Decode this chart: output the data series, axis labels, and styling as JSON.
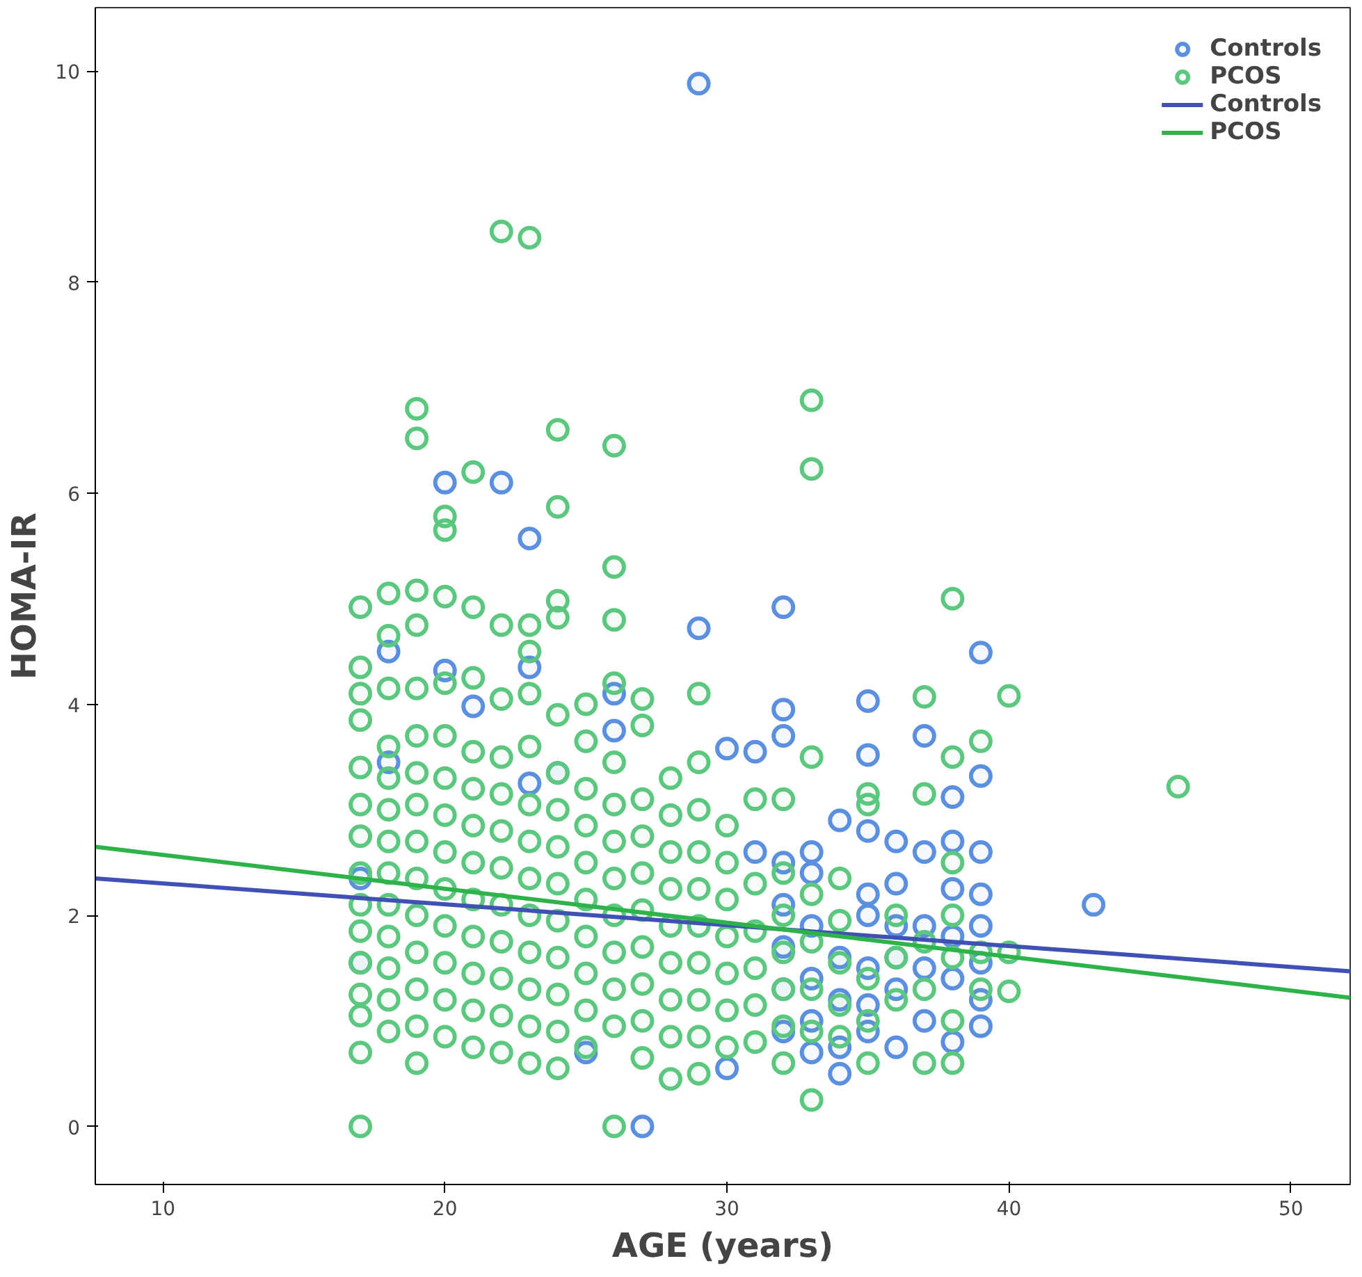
{
  "chart_data": {
    "type": "scatter",
    "xlabel": "AGE (years)",
    "ylabel": "HOMA-IR",
    "xlim": [
      7.6,
      52.1
    ],
    "ylim": [
      -0.55,
      10.6
    ],
    "xticks": [
      10,
      20,
      30,
      40,
      50
    ],
    "yticks": [
      0,
      2,
      4,
      6,
      8,
      10
    ],
    "grid": false,
    "legend": "top right",
    "series": [
      {
        "name": "Controls",
        "marker": "circle",
        "color": "#5b8fdf",
        "x": [
          17,
          17,
          18,
          18,
          20,
          20,
          21,
          22,
          23,
          23,
          23,
          24,
          25,
          26,
          26,
          27,
          29,
          29,
          30,
          30,
          31,
          31,
          32,
          32,
          32,
          32,
          32,
          32,
          32,
          32,
          33,
          33,
          33,
          33,
          33,
          33,
          34,
          34,
          34,
          34,
          34,
          35,
          35,
          35,
          35,
          35,
          35,
          35,
          35,
          36,
          36,
          36,
          36,
          36,
          36,
          37,
          37,
          37,
          37,
          37,
          38,
          38,
          38,
          38,
          38,
          38,
          39,
          39,
          39,
          39,
          39,
          39,
          39,
          39,
          43
        ],
        "values": [
          1.55,
          2.35,
          3.45,
          4.5,
          4.32,
          6.1,
          3.98,
          6.1,
          3.25,
          4.35,
          5.57,
          3.35,
          0.7,
          3.75,
          4.1,
          0,
          4.72,
          9.88,
          0.55,
          3.58,
          3.55,
          2.6,
          0.9,
          1.3,
          1.7,
          2.1,
          2.5,
          3.7,
          3.95,
          4.92,
          0.7,
          1.0,
          1.4,
          1.9,
          2.4,
          2.6,
          0.5,
          0.75,
          1.2,
          1.6,
          2.9,
          0.9,
          1.15,
          1.5,
          2.0,
          2.2,
          2.8,
          3.52,
          4.03,
          0.75,
          1.3,
          1.6,
          1.9,
          2.3,
          2.7,
          1.0,
          1.5,
          1.9,
          2.6,
          3.7,
          0.8,
          1.4,
          1.8,
          2.25,
          2.7,
          3.12,
          0.95,
          1.2,
          1.55,
          1.9,
          2.2,
          2.6,
          3.32,
          4.49,
          2.1
        ]
      },
      {
        "name": "PCOS",
        "marker": "circle",
        "color": "#5cc77e",
        "x": [
          17,
          17,
          17,
          17,
          17,
          17,
          17,
          17,
          17,
          17,
          17,
          17,
          17,
          17,
          17,
          18,
          18,
          18,
          18,
          18,
          18,
          18,
          18,
          18,
          18,
          18,
          18,
          18,
          19,
          19,
          19,
          19,
          19,
          19,
          19,
          19,
          19,
          19,
          19,
          19,
          19,
          19,
          19,
          20,
          20,
          20,
          20,
          20,
          20,
          20,
          20,
          20,
          20,
          20,
          20,
          20,
          21,
          21,
          21,
          21,
          21,
          21,
          21,
          21,
          21,
          21,
          21,
          21,
          22,
          22,
          22,
          22,
          22,
          22,
          22,
          22,
          22,
          22,
          22,
          22,
          23,
          23,
          23,
          23,
          23,
          23,
          23,
          23,
          23,
          23,
          23,
          23,
          23,
          24,
          24,
          24,
          24,
          24,
          24,
          24,
          24,
          24,
          24,
          24,
          24,
          24,
          24,
          25,
          25,
          25,
          25,
          25,
          25,
          25,
          25,
          25,
          25,
          26,
          26,
          26,
          26,
          26,
          26,
          26,
          26,
          26,
          26,
          26,
          26,
          26,
          27,
          27,
          27,
          27,
          27,
          27,
          27,
          27,
          27,
          27,
          28,
          28,
          28,
          28,
          28,
          28,
          28,
          28,
          28,
          29,
          29,
          29,
          29,
          29,
          29,
          29,
          29,
          29,
          29,
          30,
          30,
          30,
          30,
          30,
          30,
          30,
          31,
          31,
          31,
          31,
          31,
          31,
          32,
          32,
          32,
          32,
          32,
          32,
          32,
          33,
          33,
          33,
          33,
          33,
          33,
          33,
          33,
          34,
          34,
          34,
          34,
          34,
          35,
          35,
          35,
          35,
          35,
          36,
          36,
          36,
          37,
          37,
          37,
          37,
          37,
          38,
          38,
          38,
          38,
          38,
          38,
          38,
          39,
          39,
          39,
          40,
          40,
          40,
          46
        ],
        "values": [
          0,
          0.7,
          1.05,
          1.25,
          1.55,
          1.85,
          2.1,
          2.4,
          2.75,
          3.05,
          3.4,
          3.85,
          4.1,
          4.35,
          4.92,
          0.9,
          1.2,
          1.5,
          1.8,
          2.1,
          2.4,
          2.7,
          3.0,
          3.3,
          3.6,
          4.15,
          4.65,
          5.05,
          0.6,
          0.95,
          1.3,
          1.65,
          2.0,
          2.35,
          2.7,
          3.05,
          3.35,
          3.7,
          4.15,
          4.75,
          5.08,
          6.52,
          6.8,
          0.85,
          1.2,
          1.55,
          1.9,
          2.25,
          2.6,
          2.95,
          3.3,
          3.7,
          4.2,
          5.02,
          5.65,
          5.78,
          0.75,
          1.1,
          1.45,
          1.8,
          2.15,
          2.5,
          2.85,
          3.2,
          3.55,
          4.25,
          4.92,
          6.2,
          0.7,
          1.05,
          1.4,
          1.75,
          2.1,
          2.45,
          2.8,
          3.15,
          3.5,
          4.05,
          4.75,
          8.48,
          0.6,
          0.95,
          1.3,
          1.65,
          2.0,
          2.35,
          2.7,
          3.05,
          3.6,
          4.1,
          4.5,
          4.75,
          8.42,
          0.55,
          0.9,
          1.25,
          1.6,
          1.95,
          2.3,
          2.65,
          3.0,
          3.35,
          3.9,
          4.82,
          4.98,
          5.87,
          6.6,
          0.75,
          1.1,
          1.45,
          1.8,
          2.15,
          2.5,
          2.85,
          3.2,
          3.65,
          4.0,
          0,
          0.95,
          1.3,
          1.65,
          2.0,
          2.35,
          2.7,
          3.05,
          3.45,
          4.2,
          4.8,
          5.3,
          6.45,
          0.65,
          1.0,
          1.35,
          1.7,
          2.05,
          2.4,
          2.75,
          3.1,
          3.8,
          4.05,
          0.45,
          0.85,
          1.2,
          1.55,
          1.9,
          2.25,
          2.6,
          2.95,
          3.3,
          0.5,
          0.85,
          1.2,
          1.55,
          1.9,
          2.25,
          2.6,
          3.0,
          3.45,
          4.1,
          0.75,
          1.1,
          1.45,
          1.8,
          2.15,
          2.5,
          2.85,
          0.8,
          1.15,
          1.5,
          1.85,
          2.3,
          3.1,
          0.6,
          0.95,
          1.3,
          1.65,
          2.0,
          2.4,
          3.1,
          0.25,
          0.9,
          1.3,
          1.75,
          2.2,
          3.5,
          6.23,
          6.88,
          0.85,
          1.15,
          1.55,
          1.95,
          2.35,
          0.6,
          1.0,
          1.4,
          3.05,
          3.15,
          1.2,
          1.6,
          2.0,
          0.6,
          1.3,
          1.75,
          3.15,
          4.07,
          0.6,
          1.0,
          1.6,
          2.0,
          2.5,
          3.5,
          5.0,
          1.3,
          1.65,
          3.65,
          1.28,
          1.65,
          4.08,
          3.22
        ]
      },
      {
        "name": "Controls",
        "type": "line",
        "color": "#3f51b5",
        "x": [
          7.6,
          52.1
        ],
        "values": [
          2.35,
          1.47
        ]
      },
      {
        "name": "PCOS",
        "type": "line",
        "color": "#2db34a",
        "x": [
          7.6,
          52.1
        ],
        "values": [
          2.65,
          1.22
        ]
      }
    ]
  }
}
